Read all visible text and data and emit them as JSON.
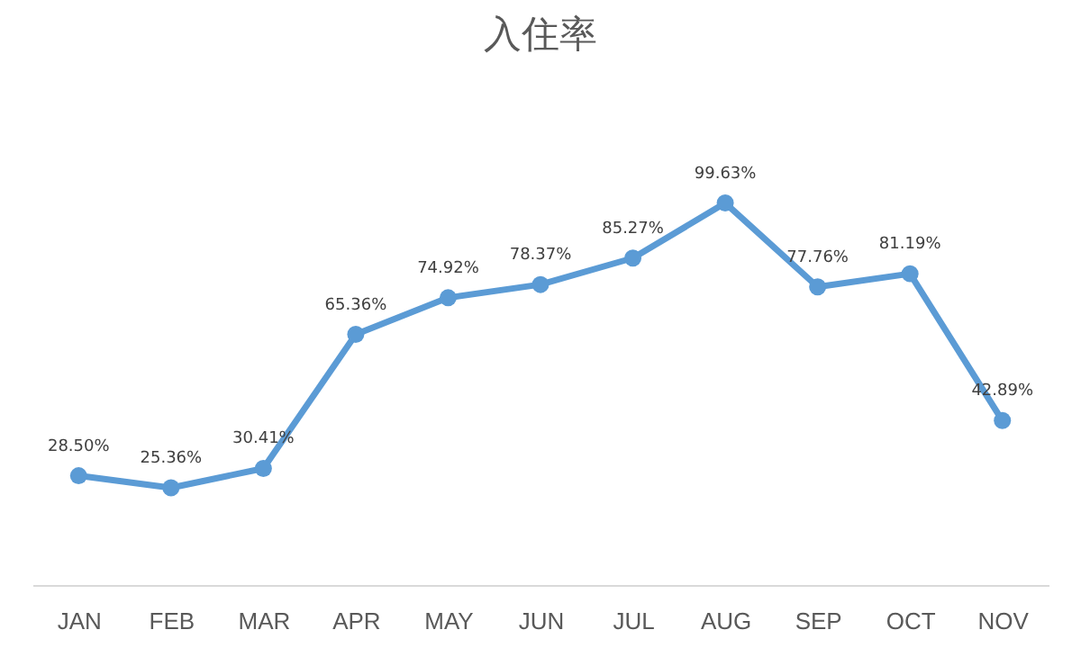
{
  "chart_data": {
    "type": "line",
    "title": "入住率",
    "categories": [
      "JAN",
      "FEB",
      "MAR",
      "APR",
      "MAY",
      "JUN",
      "JUL",
      "AUG",
      "SEP",
      "OCT",
      "NOV"
    ],
    "series": [
      {
        "color": "#5b9bd5",
        "values": [
          28.5,
          25.36,
          30.41,
          65.36,
          74.92,
          78.37,
          85.27,
          99.63,
          77.76,
          81.19,
          42.89
        ],
        "value_labels": [
          "28.50%",
          "25.36%",
          "30.41%",
          "65.36%",
          "74.92%",
          "78.37%",
          "85.27%",
          "99.63%",
          "77.76%",
          "81.19%",
          "42.89%"
        ]
      }
    ],
    "tick_labels": "x",
    "marker": "circle",
    "line_style": "solid"
  }
}
